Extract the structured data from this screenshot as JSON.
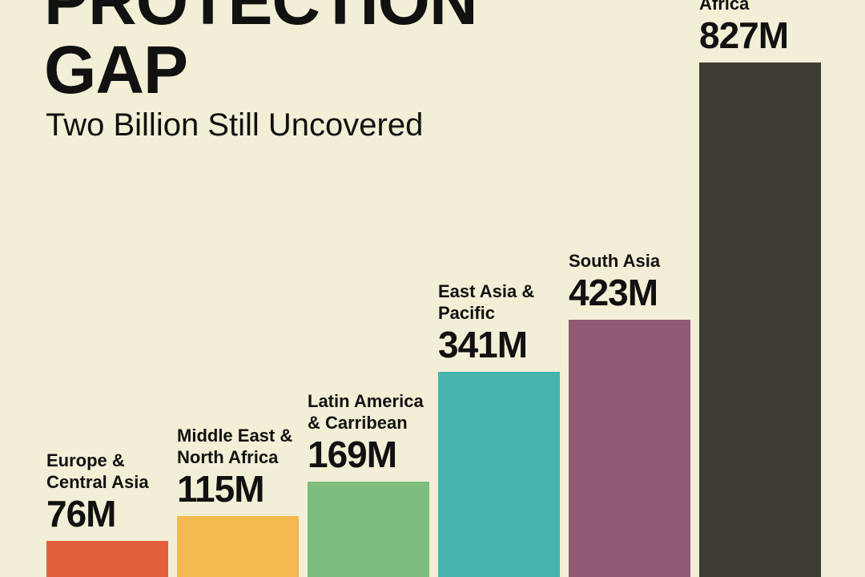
{
  "chart_data": {
    "type": "bar",
    "title": "PROTECTION GAP",
    "subtitle": "Two Billion Still Uncovered",
    "categories": [
      "Europe & Central Asia",
      "Middle East & North Africa",
      "Latin America & Carribean",
      "East Asia & Pacific",
      "South Asia",
      "Africa"
    ],
    "values": [
      76,
      115,
      169,
      341,
      423,
      827
    ],
    "value_labels": [
      "76M",
      "115M",
      "169M",
      "341M",
      "423M",
      "827M"
    ],
    "colors": [
      "#e2603a",
      "#f4b94e",
      "#7dbd7e",
      "#46b5b0",
      "#8e5a74",
      "#3e3b33"
    ]
  }
}
